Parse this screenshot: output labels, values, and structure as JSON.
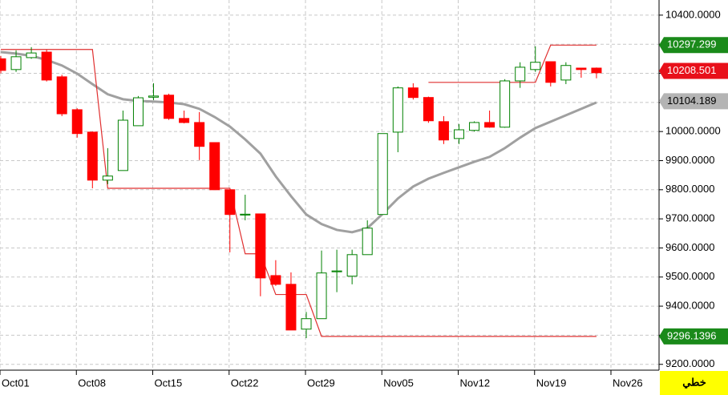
{
  "chart_data": {
    "type": "candlestick",
    "categories": [
      "Oct01",
      null,
      null,
      null,
      null,
      "Oct08",
      null,
      null,
      null,
      null,
      "Oct15",
      null,
      null,
      null,
      null,
      "Oct22",
      null,
      null,
      null,
      null,
      "Oct29",
      null,
      null,
      null,
      null,
      "Nov05",
      null,
      null,
      null,
      null,
      "Nov12",
      null,
      null,
      null,
      null,
      "Nov19",
      null,
      null,
      null,
      null,
      "Nov26"
    ],
    "open": [
      10250,
      10213,
      10254,
      10273,
      10188,
      10075,
      9998,
      9833,
      9866,
      10020,
      10118,
      10125,
      10045,
      10031,
      9962,
      9800,
      9713,
      9717,
      9505,
      9475,
      9321,
      9357,
      9518,
      9503,
      9577,
      9715,
      9998,
      10150,
      10117,
      10034,
      9976,
      10004,
      10031,
      10015,
      10174,
      10213,
      10240,
      10177,
      10218,
      10218,
      null
    ],
    "high": [
      10260,
      10279,
      10290,
      10281,
      10195,
      10080,
      10000,
      9943,
      10072,
      10122,
      10166,
      10130,
      10072,
      10067,
      9962,
      9800,
      9783,
      9717,
      9558,
      9516,
      9380,
      9591,
      9594,
      9594,
      9695,
      9993,
      10155,
      10166,
      10120,
      10053,
      10026,
      10035,
      10072,
      10180,
      10238,
      10293,
      10240,
      10238,
      10218,
      10220,
      null
    ],
    "low": [
      10200,
      10205,
      10250,
      10172,
      10053,
      9979,
      9805,
      9819,
      9866,
      10020,
      10108,
      10040,
      10028,
      9902,
      9800,
      9585,
      9695,
      9434,
      9470,
      9318,
      9290,
      9357,
      9448,
      9475,
      9577,
      9715,
      9929,
      10110,
      10030,
      9957,
      9957,
      10000,
      10013,
      10013,
      10150,
      10205,
      10155,
      10163,
      10185,
      10183,
      null
    ],
    "close": [
      10210,
      10257,
      10270,
      10177,
      10061,
      9993,
      9833,
      9847,
      10039,
      10116,
      10122,
      10045,
      10031,
      9949,
      9800,
      9715,
      9716,
      9497,
      9475,
      9318,
      9357,
      9514,
      9521,
      9577,
      9668,
      9993,
      10150,
      10117,
      10037,
      9971,
      10006,
      10031,
      10015,
      10174,
      10221,
      10238,
      10169,
      10227,
      10213,
      10202,
      null
    ],
    "up_color": "#008000",
    "down_color": "#ff0000",
    "lines": [
      {
        "color": "#a0a0a0",
        "width": 3,
        "values": [
          10273,
          10268,
          10260,
          10246,
          10227,
          10199,
          10163,
          10128,
          10111,
          10105,
          10103,
          10100,
          10094,
          10078,
          10050,
          10017,
          9973,
          9924,
          9846,
          9778,
          9715,
          9682,
          9662,
          9654,
          9668,
          9717,
          9770,
          9811,
          9838,
          9858,
          9877,
          9896,
          9913,
          9943,
          9979,
          10012,
          10034,
          10056,
          10078,
          10100,
          null
        ]
      },
      {
        "color": "#e03030",
        "width": 1.2,
        "values": [
          10282,
          10282,
          10282,
          10282,
          10282,
          10282,
          10282,
          9805,
          9805,
          9805,
          9805,
          9805,
          9805,
          9805,
          9805,
          9805,
          9580,
          9580,
          9440,
          9440,
          9440,
          9296,
          9296,
          9296,
          9296,
          9296,
          9296,
          9296,
          9296,
          9296,
          9296,
          9296,
          9296,
          9296,
          9296,
          9296,
          9296,
          9296,
          9296,
          9296,
          null
        ]
      },
      {
        "color": "#e03030",
        "width": 1.2,
        "values": [
          null,
          null,
          null,
          null,
          null,
          null,
          null,
          null,
          null,
          null,
          null,
          null,
          null,
          null,
          null,
          null,
          null,
          null,
          null,
          null,
          null,
          null,
          null,
          null,
          null,
          null,
          null,
          null,
          10169,
          10169,
          10169,
          10169,
          10169,
          10169,
          10169,
          10169,
          10297,
          10297,
          10297,
          10297,
          null
        ]
      }
    ],
    "ylim": [
      9180,
      10452
    ],
    "yticks": [
      {
        "value": 9200,
        "label": "9200.0000"
      },
      {
        "value": 9300,
        "label": "9300.0000"
      },
      {
        "value": 9400,
        "label": "9400.0000"
      },
      {
        "value": 9500,
        "label": "9500.0000"
      },
      {
        "value": 9600,
        "label": "9600.0000"
      },
      {
        "value": 9700,
        "label": "9700.0000"
      },
      {
        "value": 9800,
        "label": "9800.0000"
      },
      {
        "value": 9900,
        "label": "9900.0000"
      },
      {
        "value": 10000,
        "label": "10000.0000"
      },
      {
        "value": 10100,
        "label": "10100.0000"
      },
      {
        "value": 10200,
        "label": "10200.0000"
      },
      {
        "value": 10300,
        "label": "10300.0000"
      },
      {
        "value": 10400,
        "label": "10400.0000"
      }
    ],
    "price_tags": [
      {
        "value": 10297.299,
        "color": "#1a8a1a"
      },
      {
        "value": 10208.501,
        "color": "#e8101a"
      },
      {
        "value": 10104.189,
        "color": "#b4b4b4"
      },
      {
        "value": 9296.1396,
        "color": "#1a8a1a"
      }
    ],
    "grid": true,
    "scale_button": "خطي"
  }
}
